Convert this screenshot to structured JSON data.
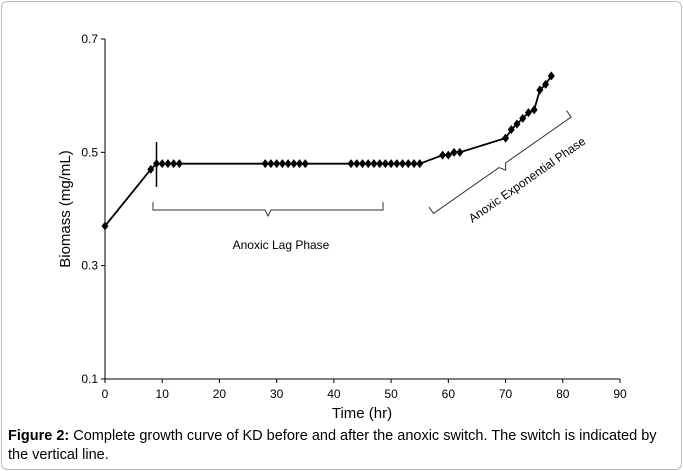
{
  "chart_data": {
    "type": "line",
    "x_label": "Time (hr)",
    "y_label": "Biomass (mg/mL)",
    "x": [
      0,
      8,
      9,
      10,
      11,
      12,
      13,
      28,
      29,
      30,
      31,
      32,
      33,
      34,
      35,
      43,
      44,
      45,
      46,
      47,
      48,
      49,
      50,
      51,
      52,
      53,
      54,
      55,
      59,
      60,
      61,
      62,
      70,
      71,
      72,
      73,
      74,
      75,
      76,
      77,
      78
    ],
    "values": [
      0.37,
      0.47,
      0.48,
      0.48,
      0.48,
      0.48,
      0.48,
      0.48,
      0.48,
      0.48,
      0.48,
      0.48,
      0.48,
      0.48,
      0.48,
      0.48,
      0.48,
      0.48,
      0.48,
      0.48,
      0.48,
      0.48,
      0.48,
      0.48,
      0.48,
      0.48,
      0.48,
      0.48,
      0.495,
      0.495,
      0.5,
      0.5,
      0.525,
      0.54,
      0.55,
      0.56,
      0.57,
      0.575,
      0.61,
      0.62,
      0.635
    ],
    "color": "#000000",
    "xlim": [
      0,
      90
    ],
    "xticks": [
      0,
      10,
      20,
      30,
      40,
      50,
      60,
      70,
      80,
      90
    ],
    "ylim": [
      0.1,
      0.7
    ],
    "yticks": [
      0.1,
      0.3,
      0.5,
      0.7
    ],
    "switch_x": 9,
    "annotations": [
      "Anoxic Lag Phase",
      "Anoxic Exponential Phase"
    ]
  },
  "caption": {
    "label": "Figure 2:",
    "text": "Complete growth curve of KD before and after the anoxic switch. The switch is indicated by the vertical line."
  }
}
